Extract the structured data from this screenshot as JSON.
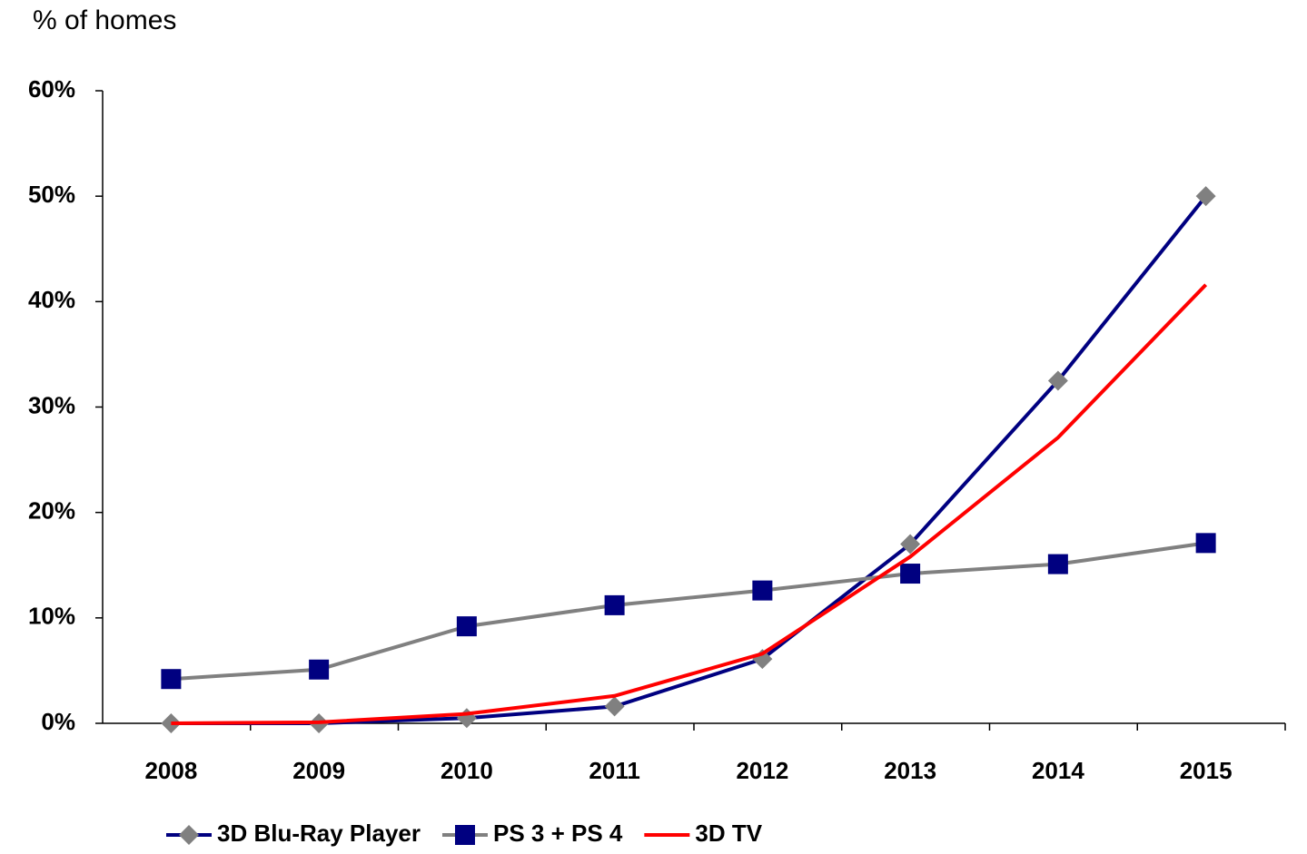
{
  "chart_data": {
    "type": "line",
    "y_label": "% of homes",
    "categories": [
      "2008",
      "2009",
      "2010",
      "2011",
      "2012",
      "2013",
      "2014",
      "2015"
    ],
    "series": [
      {
        "name": "3D Blu-Ray Player",
        "color": "#000080",
        "marker": "diamond",
        "marker_color": "#808080",
        "values": [
          0,
          0,
          0.5,
          1.6,
          6.1,
          17,
          32.5,
          50
        ]
      },
      {
        "name": "PS 3 + PS 4",
        "color": "#808080",
        "marker": "square",
        "marker_color": "#000080",
        "values": [
          4.2,
          5.1,
          9.2,
          11.2,
          12.6,
          14.2,
          15.1,
          17.1
        ]
      },
      {
        "name": "3D TV",
        "color": "#ff0000",
        "marker": "none",
        "values": [
          0,
          0.1,
          0.9,
          2.6,
          6.6,
          15.8,
          27.1,
          41.6
        ]
      }
    ],
    "ylim": [
      0,
      60
    ],
    "yticks": [
      {
        "value": 0,
        "label": "0%"
      },
      {
        "value": 10,
        "label": "10%"
      },
      {
        "value": 20,
        "label": "20%"
      },
      {
        "value": 30,
        "label": "30%"
      },
      {
        "value": 40,
        "label": "40%"
      },
      {
        "value": 50,
        "label": "50%"
      },
      {
        "value": 60,
        "label": "60%"
      }
    ],
    "grid": false,
    "legend": "bottom"
  }
}
